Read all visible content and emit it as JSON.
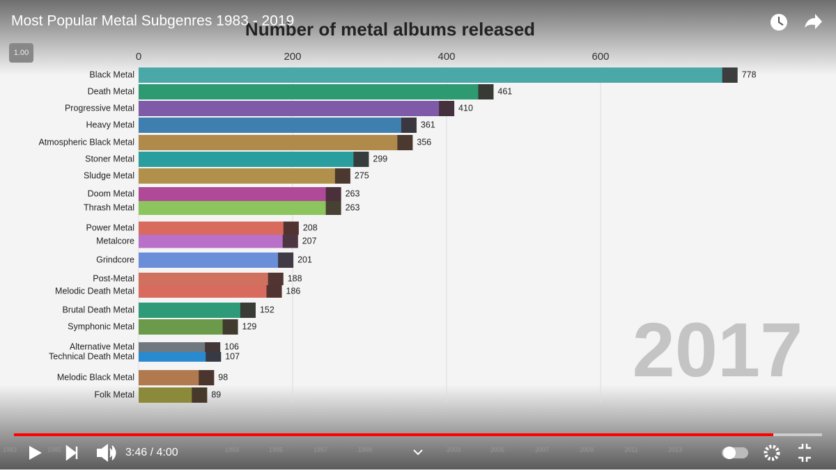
{
  "video": {
    "title": "Most Popular Metal Subgenres 1983 - 2019",
    "speed": "1.00",
    "time": "3:46 / 4:00",
    "timeline_labels": [
      "1983",
      "1985",
      "1993",
      "1995",
      "1997",
      "1999",
      "2003",
      "2005",
      "2007",
      "2009",
      "2011",
      "2013"
    ]
  },
  "chart_data": {
    "type": "bar",
    "orientation": "horizontal",
    "title": "Number of metal albums released",
    "year": "2017",
    "categories": [
      "Black Metal",
      "Death Metal",
      "Progressive Metal",
      "Heavy Metal",
      "Atmospheric Black Metal",
      "Stoner Metal",
      "Sludge Metal",
      "Doom Metal",
      "Thrash Metal",
      "Power Metal",
      "Metalcore",
      "Grindcore",
      "Post-Metal",
      "Melodic Death Metal",
      "Brutal Death Metal",
      "Symphonic Metal",
      "Alternative Metal",
      "Technical Death Metal",
      "Melodic Black Metal",
      "Folk Metal"
    ],
    "values": [
      778,
      461,
      410,
      361,
      356,
      299,
      275,
      263,
      263,
      208,
      207,
      201,
      188,
      186,
      152,
      129,
      106,
      107,
      98,
      89
    ],
    "colors": [
      "#4aa9a8",
      "#2e9a72",
      "#7f5aa8",
      "#3f7fb0",
      "#b08a4a",
      "#2a9e9e",
      "#b0904a",
      "#b04a98",
      "#8cc45e",
      "#d86a5e",
      "#b870c8",
      "#6a8ed8",
      "#d0705e",
      "#d86a5e",
      "#2e9a78",
      "#6a9a4a",
      "#707880",
      "#2a8ad0",
      "#b07a4e",
      "#8a8a3a"
    ],
    "xlim": [
      0,
      800
    ],
    "xticks": [
      0,
      200,
      400,
      600
    ],
    "grid": true
  }
}
